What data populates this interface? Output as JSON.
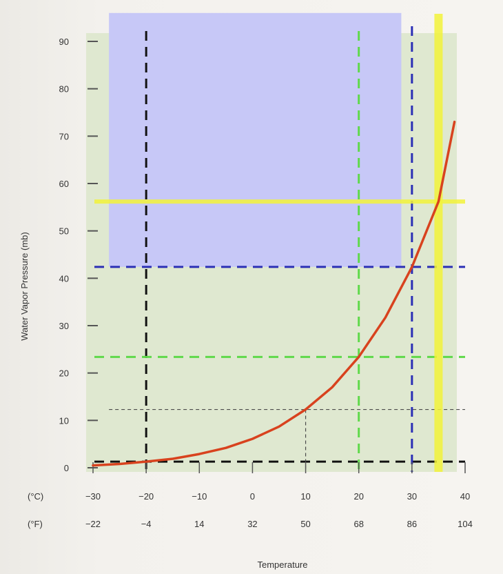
{
  "chart_data": {
    "type": "line",
    "title": "",
    "xlabel": "Temperature",
    "ylabel": "Water Vapor Pressure (mb)",
    "xlim": [
      -30,
      40
    ],
    "ylim": [
      0,
      90
    ],
    "celsius_ticks": [
      -30,
      -20,
      -10,
      0,
      10,
      20,
      30,
      40
    ],
    "fahrenheit_ticks": [
      "-22",
      "-4",
      "14",
      "32",
      "50",
      "68",
      "86",
      "104"
    ],
    "y_ticks": [
      0,
      10,
      20,
      30,
      40,
      50,
      60,
      70,
      80,
      90
    ],
    "unit_labels": {
      "celsius": "(°C)",
      "fahrenheit": "(°F)"
    },
    "series": [
      {
        "color": "#d8421e",
        "x": [
          -30,
          -25,
          -20,
          -15,
          -10,
          -5,
          0,
          5,
          10,
          15,
          20,
          25,
          30,
          35,
          38
        ],
        "y": [
          0.5,
          0.8,
          1.3,
          1.9,
          2.9,
          4.2,
          6.1,
          8.7,
          12.3,
          17.0,
          23.4,
          31.7,
          42.4,
          56.2,
          73
        ]
      }
    ],
    "reference_lines": [
      {
        "color": "#111111",
        "orientation": "vertical",
        "x": -20
      },
      {
        "color": "#111111",
        "orientation": "horizontal",
        "y": 1.3
      },
      {
        "color": "#4a4a4a",
        "orientation": "horizontal",
        "y": 12.3
      },
      {
        "color": "#4a4a4a",
        "orientation": "vertical",
        "x": 10
      },
      {
        "color": "#5fd94a",
        "orientation": "vertical",
        "x": 20
      },
      {
        "color": "#5fd94a",
        "orientation": "horizontal",
        "y": 23.4
      },
      {
        "color": "#2b2fb5",
        "orientation": "vertical",
        "x": 30
      },
      {
        "color": "#2b2fb5",
        "orientation": "horizontal",
        "y": 42.4
      },
      {
        "color": "#f2f23a",
        "orientation": "vertical",
        "x": 35
      },
      {
        "color": "#f2f23a",
        "orientation": "horizontal",
        "y": 56.2
      }
    ],
    "highlight_region": {
      "color": "#c7c8f7",
      "x": [
        -27,
        28
      ],
      "y": [
        42.4,
        96
      ]
    },
    "plot_background": "#dfe8d0",
    "grid": false,
    "legend": "none"
  }
}
